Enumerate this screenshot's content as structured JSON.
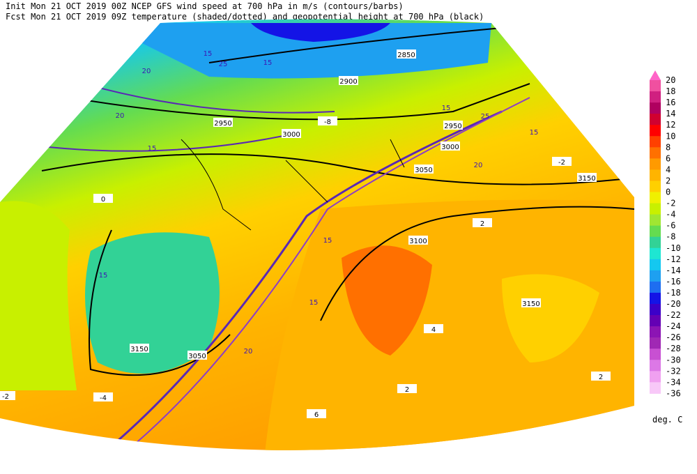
{
  "header": {
    "line1": "Init  Mon 21 OCT 2019 00Z  NCEP GFS wind speed at 700 hPa in m/s (contours/barbs)",
    "line2": "Fcst Mon 21 OCT 2019 09Z  temperature (shaded/dotted) and geopotential height at 700 hPa (black)"
  },
  "map": {
    "height_labels": [
      "2850",
      "2900",
      "2950",
      "2950",
      "3000",
      "3000",
      "3050",
      "3050",
      "3100",
      "3150",
      "3150",
      "3150"
    ],
    "wind_labels": [
      "15",
      "20",
      "25",
      "15",
      "20",
      "15",
      "15",
      "15",
      "20",
      "25",
      "15",
      "20",
      "15",
      "15"
    ],
    "temp_labels": [
      "-8",
      "-2",
      "0",
      "2",
      "4",
      "2",
      "-4",
      "2",
      "6",
      "-2"
    ]
  },
  "legend": {
    "levels": [
      "20",
      "18",
      "16",
      "14",
      "12",
      "10",
      "8",
      "6",
      "4",
      "2",
      "0",
      "-2",
      "-4",
      "-6",
      "-8",
      "-10",
      "-12",
      "-14",
      "-16",
      "-18",
      "-20",
      "-22",
      "-24",
      "-26",
      "-28",
      "-30",
      "-32",
      "-34",
      "-36"
    ],
    "colors": [
      "#f050a0",
      "#d02080",
      "#b00060",
      "#d00030",
      "#ff0000",
      "#ff4000",
      "#ff7000",
      "#ff9a00",
      "#ffb400",
      "#ffd000",
      "#f0f000",
      "#c8f000",
      "#a0e632",
      "#64dc50",
      "#32d296",
      "#1ee6d2",
      "#14c8f0",
      "#1ea0f0",
      "#1e6ef0",
      "#1414e6",
      "#3c00c8",
      "#6400b4",
      "#8c14b4",
      "#a028b4",
      "#c850d2",
      "#dc78e6",
      "#f0a0f0",
      "#f8c8f8"
    ],
    "top_color": "#ff64c8",
    "unit": "deg. C"
  }
}
